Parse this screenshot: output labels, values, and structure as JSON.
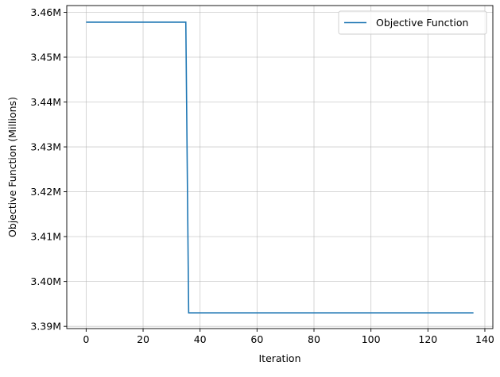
{
  "chart_data": {
    "type": "line",
    "title": "",
    "xlabel": "Iteration",
    "ylabel": "Objective Function (Millions)",
    "xlim": [
      -6.8,
      142.8
    ],
    "ylim": [
      3.3895,
      3.4615
    ],
    "x_ticks": [
      0,
      20,
      40,
      60,
      80,
      100,
      120,
      140
    ],
    "y_ticks": [
      3.39,
      3.4,
      3.41,
      3.42,
      3.43,
      3.44,
      3.45,
      3.46
    ],
    "y_tick_labels": [
      "3.39M",
      "3.40M",
      "3.41M",
      "3.42M",
      "3.43M",
      "3.44M",
      "3.45M",
      "3.46M"
    ],
    "grid": true,
    "legend_position": "top-right",
    "series": [
      {
        "name": "Objective Function",
        "color": "#1f77b4",
        "x": [
          0,
          35,
          36,
          136
        ],
        "y": [
          3.4578,
          3.4578,
          3.393,
          3.393
        ]
      }
    ]
  }
}
